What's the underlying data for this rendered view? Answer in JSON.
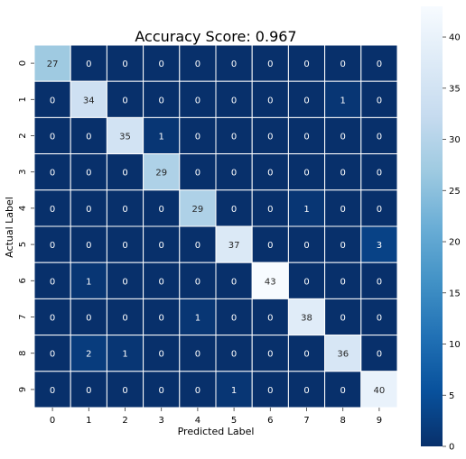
{
  "chart_data": {
    "type": "heatmap",
    "title": "Accuracy Score: 0.967",
    "xlabel": "Predicted Label",
    "ylabel": "Actual Label",
    "x_categories": [
      "0",
      "1",
      "2",
      "3",
      "4",
      "5",
      "6",
      "7",
      "8",
      "9"
    ],
    "y_categories": [
      "0",
      "1",
      "2",
      "3",
      "4",
      "5",
      "6",
      "7",
      "8",
      "9"
    ],
    "values": [
      [
        27,
        0,
        0,
        0,
        0,
        0,
        0,
        0,
        0,
        0
      ],
      [
        0,
        34,
        0,
        0,
        0,
        0,
        0,
        0,
        1,
        0
      ],
      [
        0,
        0,
        35,
        1,
        0,
        0,
        0,
        0,
        0,
        0
      ],
      [
        0,
        0,
        0,
        29,
        0,
        0,
        0,
        0,
        0,
        0
      ],
      [
        0,
        0,
        0,
        0,
        29,
        0,
        0,
        1,
        0,
        0
      ],
      [
        0,
        0,
        0,
        0,
        0,
        37,
        0,
        0,
        0,
        3
      ],
      [
        0,
        1,
        0,
        0,
        0,
        0,
        43,
        0,
        0,
        0
      ],
      [
        0,
        0,
        0,
        0,
        1,
        0,
        0,
        38,
        0,
        0
      ],
      [
        0,
        2,
        1,
        0,
        0,
        0,
        0,
        0,
        36,
        0
      ],
      [
        0,
        0,
        0,
        0,
        0,
        1,
        0,
        0,
        0,
        40
      ]
    ],
    "colormap": "Blues_r",
    "color_range": [
      0,
      43
    ],
    "colorbar_ticks": [
      0,
      5,
      10,
      15,
      20,
      25,
      30,
      35,
      40
    ],
    "colorbar": "right",
    "cell_border_color": "#ffffff",
    "square_cells": true
  }
}
